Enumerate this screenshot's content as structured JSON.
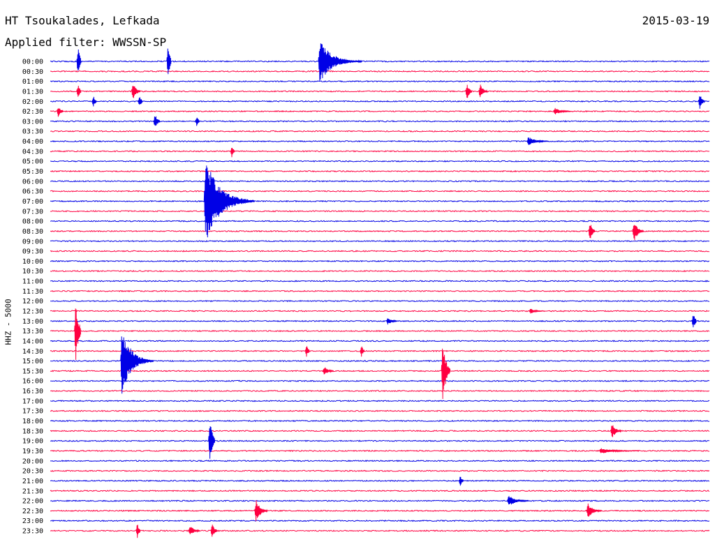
{
  "header": {
    "station": "HT Tsoukalades, Lefkada",
    "date": "2015-03-19",
    "filter": "Applied filter: WWSSN-SP"
  },
  "channel_label": "HHZ - 5000",
  "colors": {
    "even_line": "#0000e6",
    "odd_line": "#ff0040"
  },
  "chart_data": {
    "type": "helicorder",
    "station": "HT Tsoukalades, Lefkada",
    "date": "2015-03-19",
    "filter": "WWSSN-SP",
    "channel": "HHZ",
    "scale": 5000,
    "line_duration_minutes": 30,
    "row_labels": [
      "00:00",
      "00:30",
      "01:00",
      "01:30",
      "02:00",
      "02:30",
      "03:00",
      "03:30",
      "04:00",
      "04:30",
      "05:00",
      "05:30",
      "06:00",
      "06:30",
      "07:00",
      "07:30",
      "08:00",
      "08:30",
      "09:00",
      "09:30",
      "10:00",
      "10:30",
      "11:00",
      "11:30",
      "12:00",
      "12:30",
      "13:00",
      "13:30",
      "14:00",
      "14:30",
      "15:00",
      "15:30",
      "16:00",
      "16:30",
      "17:00",
      "17:30",
      "18:00",
      "18:30",
      "19:00",
      "19:30",
      "20:00",
      "20:30",
      "21:00",
      "21:30",
      "22:00",
      "22:30",
      "23:00",
      "23:30"
    ],
    "line_colors": [
      "blue",
      "red"
    ],
    "events": [
      {
        "row": "00:00",
        "minute": 12.2,
        "amplitude": 2.2,
        "duration_min": 2.0
      },
      {
        "row": "00:00",
        "minute": 1.2,
        "amplitude": 1.6,
        "duration_min": 0.2
      },
      {
        "row": "00:00",
        "minute": 5.3,
        "amplitude": 1.8,
        "duration_min": 0.2
      },
      {
        "row": "01:30",
        "minute": 1.2,
        "amplitude": 0.8,
        "duration_min": 0.2
      },
      {
        "row": "01:30",
        "minute": 3.7,
        "amplitude": 1.0,
        "duration_min": 0.4
      },
      {
        "row": "01:30",
        "minute": 18.9,
        "amplitude": 0.9,
        "duration_min": 0.3
      },
      {
        "row": "01:30",
        "minute": 19.5,
        "amplitude": 0.8,
        "duration_min": 0.4
      },
      {
        "row": "02:00",
        "minute": 1.9,
        "amplitude": 0.6,
        "duration_min": 0.2
      },
      {
        "row": "02:00",
        "minute": 4.0,
        "amplitude": 0.6,
        "duration_min": 0.2
      },
      {
        "row": "02:00",
        "minute": 29.5,
        "amplitude": 0.8,
        "duration_min": 0.3
      },
      {
        "row": "02:30",
        "minute": 0.3,
        "amplitude": 0.6,
        "duration_min": 0.3
      },
      {
        "row": "02:30",
        "minute": 22.9,
        "amplitude": 0.4,
        "duration_min": 0.8
      },
      {
        "row": "03:00",
        "minute": 4.7,
        "amplitude": 0.8,
        "duration_min": 0.3
      },
      {
        "row": "03:00",
        "minute": 6.6,
        "amplitude": 0.5,
        "duration_min": 0.2
      },
      {
        "row": "04:00",
        "minute": 21.7,
        "amplitude": 0.5,
        "duration_min": 1.0
      },
      {
        "row": "04:30",
        "minute": 8.2,
        "amplitude": 0.6,
        "duration_min": 0.2
      },
      {
        "row": "07:00",
        "minute": 7.0,
        "amplitude": 4.5,
        "duration_min": 2.3
      },
      {
        "row": "08:30",
        "minute": 24.5,
        "amplitude": 1.0,
        "duration_min": 0.3
      },
      {
        "row": "08:30",
        "minute": 26.5,
        "amplitude": 1.2,
        "duration_min": 0.5
      },
      {
        "row": "13:30",
        "minute": 1.1,
        "amplitude": 3.5,
        "duration_min": 0.3
      },
      {
        "row": "15:00",
        "minute": 3.2,
        "amplitude": 3.5,
        "duration_min": 1.5
      },
      {
        "row": "15:30",
        "minute": 17.8,
        "amplitude": 3.5,
        "duration_min": 0.4
      },
      {
        "row": "13:00",
        "minute": 15.3,
        "amplitude": 0.4,
        "duration_min": 0.5
      },
      {
        "row": "13:00",
        "minute": 29.2,
        "amplitude": 1.0,
        "duration_min": 0.2
      },
      {
        "row": "19:00",
        "minute": 7.2,
        "amplitude": 2.5,
        "duration_min": 0.3
      },
      {
        "row": "18:30",
        "minute": 25.5,
        "amplitude": 0.8,
        "duration_min": 0.5
      },
      {
        "row": "19:30",
        "minute": 25.0,
        "amplitude": 0.3,
        "duration_min": 1.8
      },
      {
        "row": "21:00",
        "minute": 18.6,
        "amplitude": 0.6,
        "duration_min": 0.2
      },
      {
        "row": "22:00",
        "minute": 20.8,
        "amplitude": 0.6,
        "duration_min": 1.0
      },
      {
        "row": "22:30",
        "minute": 9.3,
        "amplitude": 1.2,
        "duration_min": 0.6
      },
      {
        "row": "22:30",
        "minute": 24.4,
        "amplitude": 0.8,
        "duration_min": 0.7
      },
      {
        "row": "23:30",
        "minute": 3.9,
        "amplitude": 0.8,
        "duration_min": 0.2
      },
      {
        "row": "23:30",
        "minute": 6.3,
        "amplitude": 0.6,
        "duration_min": 0.5
      },
      {
        "row": "23:30",
        "minute": 7.3,
        "amplitude": 0.8,
        "duration_min": 0.3
      },
      {
        "row": "14:30",
        "minute": 11.6,
        "amplitude": 0.6,
        "duration_min": 0.2
      },
      {
        "row": "14:30",
        "minute": 14.1,
        "amplitude": 0.6,
        "duration_min": 0.2
      },
      {
        "row": "15:30",
        "minute": 12.4,
        "amplitude": 0.5,
        "duration_min": 0.5
      },
      {
        "row": "12:30",
        "minute": 21.8,
        "amplitude": 0.3,
        "duration_min": 0.6
      }
    ]
  }
}
